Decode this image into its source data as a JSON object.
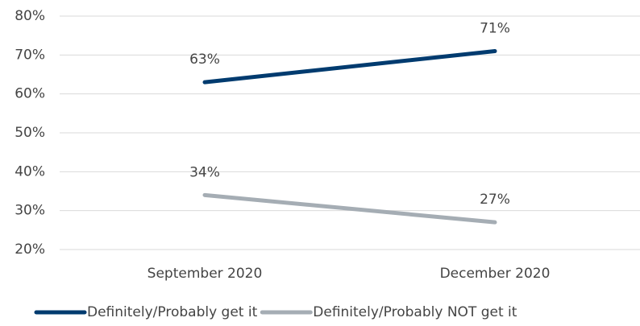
{
  "chart_data": {
    "type": "line",
    "categories": [
      "September 2020",
      "December 2020"
    ],
    "series": [
      {
        "name": "Definitely/Probably get it",
        "color": "#003b6f",
        "values": [
          63,
          71
        ],
        "value_labels": [
          "63%",
          "71%"
        ]
      },
      {
        "name": "Definitely/Probably NOT get it",
        "color": "#a5adb4",
        "values": [
          34,
          27
        ],
        "value_labels": [
          "34%",
          "27%"
        ]
      }
    ],
    "ylim": [
      20,
      80
    ],
    "yticks": [
      {
        "value": 20,
        "label": "20%"
      },
      {
        "value": 30,
        "label": "30%"
      },
      {
        "value": 40,
        "label": "40%"
      },
      {
        "value": 50,
        "label": "50%"
      },
      {
        "value": 60,
        "label": "60%"
      },
      {
        "value": 70,
        "label": "70%"
      },
      {
        "value": 80,
        "label": "80%"
      }
    ],
    "grid": true,
    "legend": "bottom"
  }
}
